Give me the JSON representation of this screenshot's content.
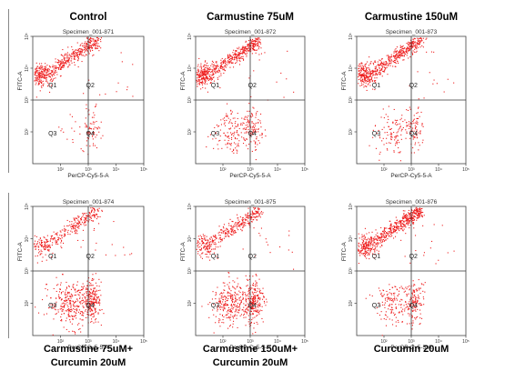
{
  "figure": {
    "top_titles": [
      "Control",
      "Carmustine 75uM",
      "Carmustine 150uM"
    ],
    "bottom_titles": [
      [
        "Carmustine 75uM+",
        "Curcumin 20uM"
      ],
      [
        "Carmustine 150uM+",
        "Curcumin 20uM"
      ],
      [
        "Curcumin 20uM"
      ]
    ]
  },
  "chart_data": [
    {
      "type": "scatter",
      "specimen": "Specimen_001-871",
      "xlabel": "PerCP-Cy5-5-A",
      "ylabel": "FITC-A",
      "x_scale": "log",
      "y_scale": "log",
      "xlim": [
        10,
        100000
      ],
      "ylim": [
        10,
        100000
      ],
      "x_ticks": [
        "10²",
        "10³",
        "10⁴",
        "10⁵"
      ],
      "y_ticks": [
        "10²",
        "10³",
        "10⁴",
        "10⁵"
      ],
      "quadrants": [
        "Q1",
        "Q2",
        "Q3",
        "Q4"
      ],
      "color": "#ee1c1c"
    },
    {
      "type": "scatter",
      "specimen": "Specimen_001-872",
      "xlabel": "PerCP-Cy5-5-A",
      "ylabel": "FITC-A",
      "x_scale": "log",
      "y_scale": "log",
      "xlim": [
        10,
        100000
      ],
      "ylim": [
        10,
        100000
      ],
      "x_ticks": [
        "10²",
        "10³",
        "10⁴",
        "10⁵"
      ],
      "y_ticks": [
        "10²",
        "10³",
        "10⁴",
        "10⁵"
      ],
      "quadrants": [
        "Q1",
        "Q2",
        "Q3",
        "Q4"
      ],
      "color": "#ee1c1c"
    },
    {
      "type": "scatter",
      "specimen": "Specimen_001-873",
      "xlabel": "PerCP-Cy5-5-A",
      "ylabel": "FITC-A",
      "x_scale": "log",
      "y_scale": "log",
      "xlim": [
        10,
        100000
      ],
      "ylim": [
        10,
        100000
      ],
      "x_ticks": [
        "10²",
        "10³",
        "10⁴",
        "10⁵"
      ],
      "y_ticks": [
        "10²",
        "10³",
        "10⁴",
        "10⁵"
      ],
      "quadrants": [
        "Q1",
        "Q2",
        "Q3",
        "Q4"
      ],
      "color": "#ee1c1c"
    },
    {
      "type": "scatter",
      "specimen": "Specimen_001-874",
      "xlabel": "PerCP-Cy5-5-A",
      "ylabel": "FITC-A",
      "x_scale": "log",
      "y_scale": "log",
      "xlim": [
        10,
        100000
      ],
      "ylim": [
        10,
        100000
      ],
      "x_ticks": [
        "10²",
        "10³",
        "10⁴",
        "10⁵"
      ],
      "y_ticks": [
        "10²",
        "10³",
        "10⁴",
        "10⁵"
      ],
      "quadrants": [
        "Q1",
        "Q2",
        "Q3",
        "Q4"
      ],
      "color": "#ee1c1c"
    },
    {
      "type": "scatter",
      "specimen": "Specimen_001-875",
      "xlabel": "PerCP-Cy5-5-A",
      "ylabel": "FITC-A",
      "x_scale": "log",
      "y_scale": "log",
      "xlim": [
        10,
        100000
      ],
      "ylim": [
        10,
        100000
      ],
      "x_ticks": [
        "10²",
        "10³",
        "10⁴",
        "10⁵"
      ],
      "y_ticks": [
        "10²",
        "10³",
        "10⁴",
        "10⁵"
      ],
      "quadrants": [
        "Q1",
        "Q2",
        "Q3",
        "Q4"
      ],
      "color": "#ee1c1c"
    },
    {
      "type": "scatter",
      "specimen": "Specimen_001-876",
      "xlabel": "PerCP-Cy5-5-A",
      "ylabel": "FITC-A",
      "x_scale": "log",
      "y_scale": "log",
      "xlim": [
        10,
        100000
      ],
      "ylim": [
        10,
        100000
      ],
      "x_ticks": [
        "10²",
        "10³",
        "10⁴",
        "10⁵"
      ],
      "y_ticks": [
        "10²",
        "10³",
        "10⁴",
        "10⁵"
      ],
      "quadrants": [
        "Q1",
        "Q2",
        "Q3",
        "Q4"
      ],
      "color": "#ee1c1c"
    }
  ]
}
